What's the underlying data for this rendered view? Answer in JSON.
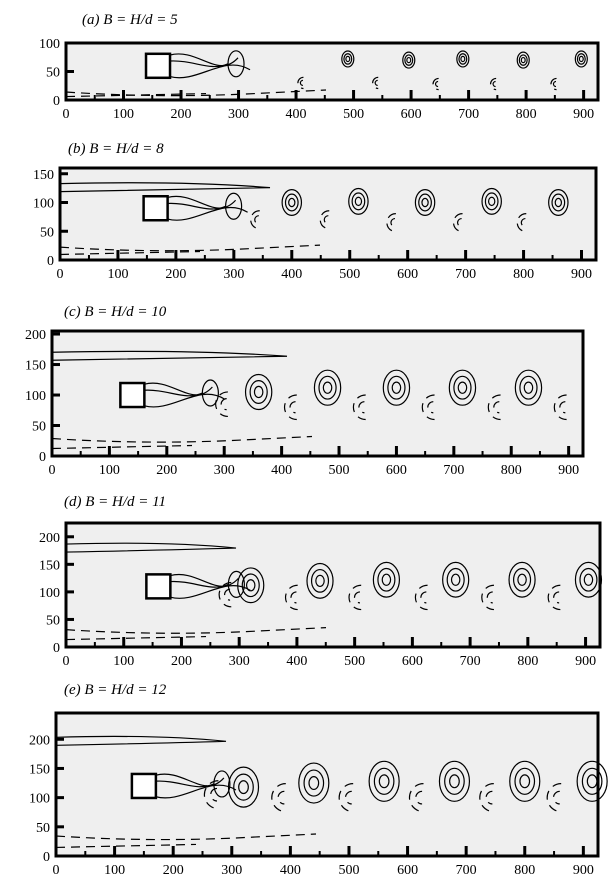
{
  "chart_data": [
    {
      "type": "contour",
      "title": "(a) B = H/d = 5",
      "xlim": [
        0,
        925
      ],
      "ylim": [
        0,
        100
      ],
      "xticks": [
        0,
        100,
        200,
        300,
        400,
        500,
        600,
        700,
        800,
        900
      ],
      "yticks": [
        0,
        50,
        100
      ],
      "cylinder": {
        "x": 160,
        "y": 60
      },
      "vortices": [
        {
          "x": 490,
          "y": 72,
          "side": "upper"
        },
        {
          "x": 596,
          "y": 70,
          "side": "upper"
        },
        {
          "x": 690,
          "y": 72,
          "side": "upper"
        },
        {
          "x": 795,
          "y": 70,
          "side": "upper"
        },
        {
          "x": 896,
          "y": 72,
          "side": "upper"
        },
        {
          "x": 410,
          "y": 30,
          "side": "lower"
        },
        {
          "x": 540,
          "y": 30,
          "side": "lower"
        },
        {
          "x": 645,
          "y": 28,
          "side": "lower"
        },
        {
          "x": 745,
          "y": 28,
          "side": "lower"
        },
        {
          "x": 850,
          "y": 28,
          "side": "lower"
        }
      ]
    },
    {
      "type": "contour",
      "title": "(b) B = H/d = 8",
      "xlim": [
        0,
        925
      ],
      "ylim": [
        0,
        160
      ],
      "xticks": [
        0,
        100,
        200,
        300,
        400,
        500,
        600,
        700,
        800,
        900
      ],
      "yticks": [
        0,
        50,
        100,
        150
      ],
      "cylinder": {
        "x": 165,
        "y": 90
      },
      "vortices": [
        {
          "x": 400,
          "y": 100,
          "side": "upper"
        },
        {
          "x": 515,
          "y": 102,
          "side": "upper"
        },
        {
          "x": 630,
          "y": 100,
          "side": "upper"
        },
        {
          "x": 745,
          "y": 102,
          "side": "upper"
        },
        {
          "x": 860,
          "y": 100,
          "side": "upper"
        },
        {
          "x": 340,
          "y": 70,
          "side": "lower"
        },
        {
          "x": 460,
          "y": 70,
          "side": "lower"
        },
        {
          "x": 575,
          "y": 65,
          "side": "lower"
        },
        {
          "x": 690,
          "y": 65,
          "side": "lower"
        },
        {
          "x": 800,
          "y": 65,
          "side": "lower"
        }
      ]
    },
    {
      "type": "contour",
      "title": "(c) B = H/d = 10",
      "xlim": [
        0,
        925
      ],
      "ylim": [
        0,
        205
      ],
      "xticks": [
        0,
        100,
        200,
        300,
        400,
        500,
        600,
        700,
        800,
        900
      ],
      "yticks": [
        0,
        50,
        100,
        150,
        200
      ],
      "cylinder": {
        "x": 140,
        "y": 100
      },
      "vortices": [
        {
          "x": 360,
          "y": 105,
          "side": "upper"
        },
        {
          "x": 480,
          "y": 112,
          "side": "upper"
        },
        {
          "x": 600,
          "y": 112,
          "side": "upper"
        },
        {
          "x": 715,
          "y": 112,
          "side": "upper"
        },
        {
          "x": 830,
          "y": 112,
          "side": "upper"
        },
        {
          "x": 300,
          "y": 85,
          "side": "lower"
        },
        {
          "x": 420,
          "y": 80,
          "side": "lower"
        },
        {
          "x": 540,
          "y": 80,
          "side": "lower"
        },
        {
          "x": 660,
          "y": 80,
          "side": "lower"
        },
        {
          "x": 775,
          "y": 80,
          "side": "lower"
        },
        {
          "x": 890,
          "y": 80,
          "side": "lower"
        }
      ]
    },
    {
      "type": "contour",
      "title": "(d) B = H/d = 11",
      "xlim": [
        0,
        925
      ],
      "ylim": [
        0,
        225
      ],
      "xticks": [
        0,
        100,
        200,
        300,
        400,
        500,
        600,
        700,
        800,
        900
      ],
      "yticks": [
        0,
        50,
        100,
        150,
        200
      ],
      "cylinder": {
        "x": 160,
        "y": 110
      },
      "vortices": [
        {
          "x": 320,
          "y": 112,
          "side": "upper"
        },
        {
          "x": 440,
          "y": 120,
          "side": "upper"
        },
        {
          "x": 555,
          "y": 122,
          "side": "upper"
        },
        {
          "x": 675,
          "y": 122,
          "side": "upper"
        },
        {
          "x": 790,
          "y": 122,
          "side": "upper"
        },
        {
          "x": 905,
          "y": 122,
          "side": "upper"
        },
        {
          "x": 280,
          "y": 95,
          "side": "lower"
        },
        {
          "x": 395,
          "y": 90,
          "side": "lower"
        },
        {
          "x": 505,
          "y": 90,
          "side": "lower"
        },
        {
          "x": 620,
          "y": 90,
          "side": "lower"
        },
        {
          "x": 735,
          "y": 90,
          "side": "lower"
        },
        {
          "x": 850,
          "y": 90,
          "side": "lower"
        }
      ]
    },
    {
      "type": "contour",
      "title": "(e) B = H/d = 12",
      "xlim": [
        0,
        925
      ],
      "ylim": [
        0,
        245
      ],
      "xticks": [
        0,
        100,
        200,
        300,
        400,
        500,
        600,
        700,
        800,
        900
      ],
      "yticks": [
        0,
        50,
        100,
        150,
        200
      ],
      "cylinder": {
        "x": 150,
        "y": 120
      },
      "vortices": [
        {
          "x": 320,
          "y": 118,
          "side": "upper"
        },
        {
          "x": 440,
          "y": 125,
          "side": "upper"
        },
        {
          "x": 560,
          "y": 128,
          "side": "upper"
        },
        {
          "x": 680,
          "y": 128,
          "side": "upper"
        },
        {
          "x": 800,
          "y": 128,
          "side": "upper"
        },
        {
          "x": 915,
          "y": 128,
          "side": "upper"
        },
        {
          "x": 270,
          "y": 105,
          "side": "lower"
        },
        {
          "x": 385,
          "y": 100,
          "side": "lower"
        },
        {
          "x": 500,
          "y": 100,
          "side": "lower"
        },
        {
          "x": 620,
          "y": 100,
          "side": "lower"
        },
        {
          "x": 740,
          "y": 100,
          "side": "lower"
        },
        {
          "x": 855,
          "y": 100,
          "side": "lower"
        }
      ]
    }
  ]
}
